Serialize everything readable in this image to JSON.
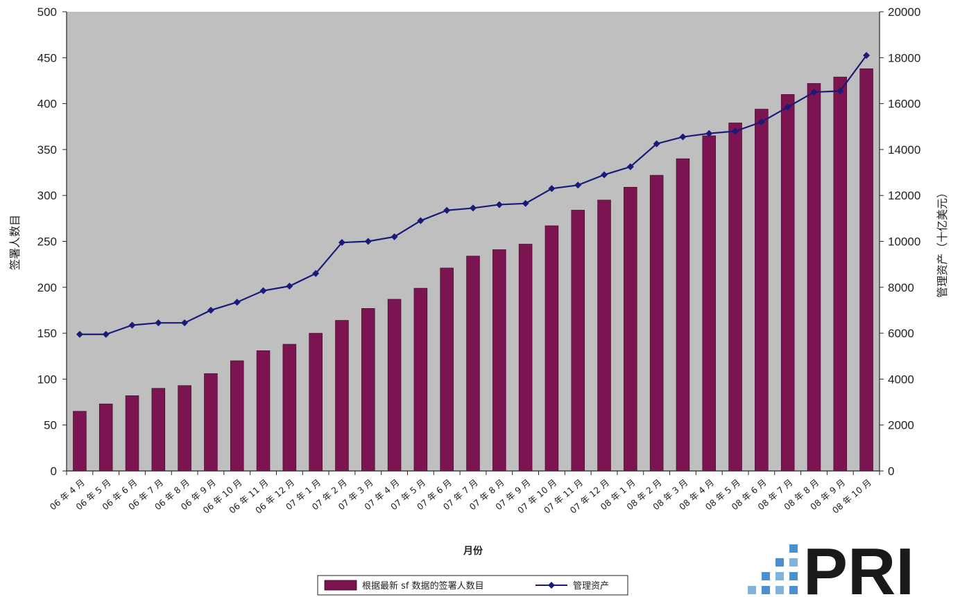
{
  "chart_data": {
    "type": "bar",
    "x_label": "月份",
    "y_label": "签署人数目",
    "y2_label": "管理资产（十亿美元）",
    "ylim": [
      0,
      500
    ],
    "y2lim": [
      0,
      20000
    ],
    "y_ticks": [
      "0",
      "50",
      "100",
      "150",
      "200",
      "250",
      "300",
      "350",
      "400",
      "450",
      "500"
    ],
    "y2_ticks": [
      "0",
      "2000",
      "4000",
      "6000",
      "8000",
      "10000",
      "12000",
      "14000",
      "16000",
      "18000",
      "20000"
    ],
    "grid": false,
    "legend_position": "bottom",
    "categories": [
      "06 年 4 月",
      "06 年 5 月",
      "06 年 6 月",
      "06 年 7 月",
      "06 年 8 月",
      "06 年 9 月",
      "06 年 10 月",
      "06 年 11 月",
      "06 年 12 月",
      "07 年 1 月",
      "07 年 2 月",
      "07 年 3 月",
      "07 年 4 月",
      "07 年 5 月",
      "07 年 6 月",
      "07 年 7 月",
      "07 年 8 月",
      "07 年 9 月",
      "07 年 10 月",
      "07 年 11 月",
      "07 年 12 月",
      "08 年 1 月",
      "08 年 2 月",
      "08 年 3 月",
      "08 年 4 月",
      "08 年 5 月",
      "08 年 6 月",
      "08 年 7 月",
      "08 年 8 月",
      "08 年 9 月",
      "08 年 10 月"
    ],
    "series": [
      {
        "name": "根据最新 sf 数据的签署人数目",
        "type": "bar",
        "axis": "left",
        "color": "#7b1450",
        "values": [
          65,
          73,
          82,
          90,
          93,
          106,
          120,
          131,
          138,
          150,
          164,
          177,
          187,
          199,
          221,
          234,
          241,
          247,
          267,
          284,
          295,
          309,
          322,
          340,
          365,
          379,
          394,
          410,
          422,
          429,
          438
        ]
      },
      {
        "name": "管理资产",
        "type": "line",
        "axis": "right",
        "color": "#1a1a7a",
        "values": [
          5950,
          5950,
          6350,
          6450,
          6450,
          7000,
          7350,
          7850,
          8050,
          8600,
          9950,
          10000,
          10200,
          10900,
          11350,
          11450,
          11600,
          11650,
          12300,
          12450,
          12900,
          13250,
          14250,
          14550,
          14700,
          14800,
          15200,
          15850,
          16500,
          16550,
          18100
        ]
      }
    ]
  },
  "logo": {
    "text": "PRI"
  }
}
